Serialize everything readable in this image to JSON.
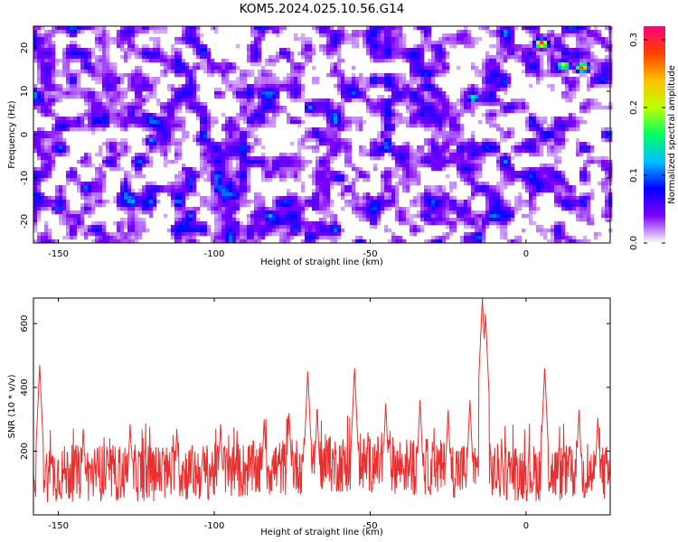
{
  "title": "KOM5.2024.025.10.56.G14",
  "chart_data": [
    {
      "type": "heatmap",
      "xlabel": "Height of straight line (km)",
      "ylabel": "Frequency (Hz)",
      "xlim": [
        -158,
        27
      ],
      "ylim": [
        -25,
        25
      ],
      "x_ticks": [
        -150,
        -100,
        -50,
        0
      ],
      "x_tick_labels": [
        "-150",
        "-100",
        "-50",
        "0"
      ],
      "y_ticks": [
        -20,
        -10,
        0,
        10,
        20
      ],
      "y_tick_labels": [
        "-20",
        "-10",
        "0",
        "10",
        "20"
      ],
      "colorbar": {
        "label": "Normalized spectral amplitude",
        "range": [
          0.0,
          0.32
        ],
        "ticks": [
          0.0,
          0.1,
          0.2,
          0.3
        ],
        "tick_labels": [
          "0.0",
          "0.1",
          "0.2",
          "0.3"
        ],
        "colors": [
          "#ffffff",
          "#8000ff",
          "#0000ff",
          "#00c0ff",
          "#00ff60",
          "#c0ff00",
          "#ffc000",
          "#ff4000",
          "#ff0080"
        ]
      },
      "hot_spots": [
        {
          "x": 5,
          "y": 21,
          "value": 0.3
        },
        {
          "x": 12,
          "y": 16,
          "value": 0.22
        },
        {
          "x": 18,
          "y": 15.5,
          "value": 0.28
        },
        {
          "x": -17,
          "y": 8.5,
          "value": 0.16
        },
        {
          "x": -120,
          "y": -1.5,
          "value": 0.12
        },
        {
          "x": -150,
          "y": -17,
          "value": 0.1
        },
        {
          "x": -60,
          "y": -10,
          "value": 0.1
        }
      ]
    },
    {
      "type": "line",
      "xlabel": "Height of straight line (km)",
      "ylabel": "SNR (10 * v/v)",
      "xlim": [
        -158,
        27
      ],
      "ylim": [
        0,
        680
      ],
      "x_ticks": [
        -150,
        -100,
        -50,
        0
      ],
      "x_tick_labels": [
        "-150",
        "-100",
        "-50",
        "0"
      ],
      "y_ticks": [
        200,
        400,
        600
      ],
      "y_tick_labels": [
        "200",
        "400",
        "600"
      ],
      "series": [
        {
          "color": "#e83030",
          "baseline": 130,
          "noise_amplitude": 90,
          "peaks": [
            {
              "x": -156,
              "y": 470
            },
            {
              "x": -142,
              "y": 270
            },
            {
              "x": -127,
              "y": 285
            },
            {
              "x": -112,
              "y": 270
            },
            {
              "x": -98,
              "y": 285
            },
            {
              "x": -84,
              "y": 300
            },
            {
              "x": -76,
              "y": 320
            },
            {
              "x": -70,
              "y": 450
            },
            {
              "x": -67,
              "y": 330
            },
            {
              "x": -55,
              "y": 460
            },
            {
              "x": -45,
              "y": 350
            },
            {
              "x": -34,
              "y": 360
            },
            {
              "x": -25,
              "y": 330
            },
            {
              "x": -18,
              "y": 360
            },
            {
              "x": -14,
              "y": 680
            },
            {
              "x": -13,
              "y": 630
            },
            {
              "x": 6,
              "y": 460
            },
            {
              "x": 17,
              "y": 330
            },
            {
              "x": 23,
              "y": 305
            }
          ]
        }
      ]
    }
  ]
}
